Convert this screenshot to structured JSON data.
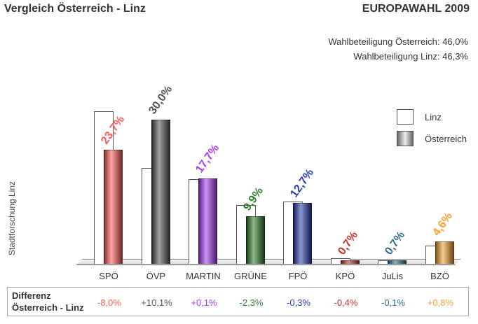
{
  "header": {
    "title": "Vergleich Österreich - Linz",
    "subtitle": "EUROPAWAHL 2009",
    "turnout_austria": "Wahlbeteiligung Österreich:  46,0%",
    "turnout_linz": "Wahlbeteiligung Linz:  46,3%"
  },
  "ylabel": "Stadtforschung Linz",
  "legend": {
    "linz": "Linz",
    "austria": "Österreich"
  },
  "diff_label": {
    "line1": "Differenz",
    "line2": "Österreich - Linz"
  },
  "parties": [
    {
      "name": "SPÖ",
      "label": "23,7%",
      "diff": "-8,0%",
      "color": "#ff5a5a"
    },
    {
      "name": "ÖVP",
      "label": "30,0%",
      "diff": "+10,1%",
      "color": "#555555"
    },
    {
      "name": "MARTIN",
      "label": "17,7%",
      "diff": "+0,1%",
      "color": "#a83cf0"
    },
    {
      "name": "GRÜNE",
      "label": "9,9%",
      "diff": "-2,3%",
      "color": "#2e7d2e"
    },
    {
      "name": "FPÖ",
      "label": "12,7%",
      "diff": "-0,3%",
      "color": "#2a3fb0"
    },
    {
      "name": "KPÖ",
      "label": "0,7%",
      "diff": "-0,4%",
      "color": "#c83030"
    },
    {
      "name": "JuLis",
      "label": "0,7%",
      "diff": "-0,1%",
      "color": "#2e6e8a"
    },
    {
      "name": "BZÖ",
      "label": "4,6%",
      "diff": "+0,8%",
      "color": "#f5a030"
    }
  ],
  "chart_data": {
    "type": "bar",
    "title": "Vergleich Österreich - Linz",
    "subtitle": "EUROPAWAHL 2009",
    "categories": [
      "SPÖ",
      "ÖVP",
      "MARTIN",
      "GRÜNE",
      "FPÖ",
      "KPÖ",
      "JuLis",
      "BZÖ"
    ],
    "series": [
      {
        "name": "Linz",
        "values": [
          31.7,
          19.9,
          17.6,
          12.2,
          13.0,
          1.1,
          0.8,
          3.8
        ]
      },
      {
        "name": "Österreich",
        "values": [
          23.7,
          30.0,
          17.7,
          9.9,
          12.7,
          0.7,
          0.7,
          4.6
        ]
      }
    ],
    "differences": {
      "label": "Differenz Österreich - Linz",
      "values": [
        -8.0,
        10.1,
        0.1,
        -2.3,
        -0.3,
        -0.4,
        -0.1,
        0.8
      ]
    },
    "annotations": [
      "Wahlbeteiligung Österreich: 46,0%",
      "Wahlbeteiligung Linz: 46,3%"
    ],
    "ylabel": "Stadtforschung Linz",
    "xlabel": "",
    "legend_position": "right",
    "grid": false
  }
}
